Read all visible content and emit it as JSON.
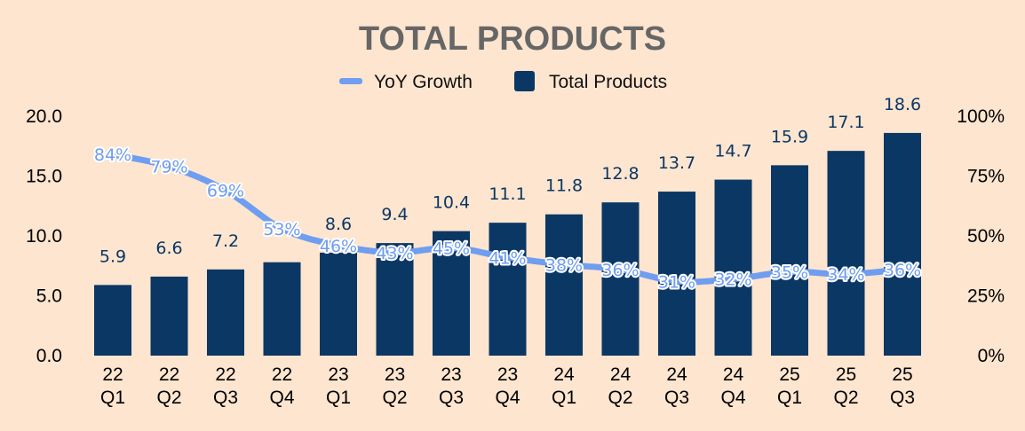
{
  "chart_data": {
    "type": "bar",
    "title": "TOTAL PRODUCTS",
    "categories": [
      [
        "22",
        "Q1"
      ],
      [
        "22",
        "Q2"
      ],
      [
        "22",
        "Q3"
      ],
      [
        "22",
        "Q4"
      ],
      [
        "23",
        "Q1"
      ],
      [
        "23",
        "Q2"
      ],
      [
        "23",
        "Q3"
      ],
      [
        "23",
        "Q4"
      ],
      [
        "24",
        "Q1"
      ],
      [
        "24",
        "Q2"
      ],
      [
        "24",
        "Q3"
      ],
      [
        "24",
        "Q4"
      ],
      [
        "25",
        "Q1"
      ],
      [
        "25",
        "Q2"
      ],
      [
        "25",
        "Q3"
      ]
    ],
    "series": [
      {
        "name": "Total Products",
        "type": "bar",
        "axis": "left",
        "color": "#0b3764",
        "values": [
          5.9,
          6.6,
          7.2,
          7.8,
          8.6,
          9.4,
          10.4,
          11.1,
          11.8,
          12.8,
          13.7,
          14.7,
          15.9,
          17.1,
          18.6
        ],
        "labels": [
          "5.9",
          "6.6",
          "7.2",
          null,
          "8.6",
          "9.4",
          "10.4",
          "11.1",
          "11.8",
          "12.8",
          "13.7",
          "14.7",
          "15.9",
          "17.1",
          "18.6"
        ]
      },
      {
        "name": "YoY Growth",
        "type": "line",
        "axis": "right",
        "color": "#6f9df0",
        "values": [
          84,
          79,
          69,
          53,
          46,
          43,
          45,
          41,
          38,
          36,
          31,
          32,
          35,
          34,
          36
        ],
        "labels": [
          "84%",
          "79%",
          "69%",
          "53%",
          "46%",
          "43%",
          "45%",
          "41%",
          "38%",
          "36%",
          "31%",
          "32%",
          "35%",
          "34%",
          "36%"
        ]
      }
    ],
    "y_left": {
      "min": 0,
      "max": 20,
      "ticks": [
        "0.0",
        "5.0",
        "10.0",
        "15.0",
        "20.0"
      ]
    },
    "y_right": {
      "min": 0,
      "max": 100,
      "ticks": [
        "0%",
        "25%",
        "50%",
        "75%",
        "100%"
      ]
    },
    "legend": {
      "position": "top-center",
      "items": [
        "YoY Growth",
        "Total Products"
      ]
    },
    "grid": false
  }
}
